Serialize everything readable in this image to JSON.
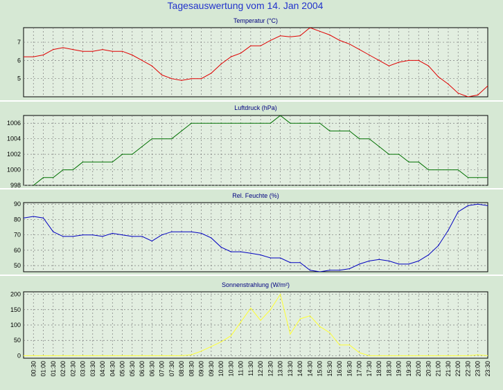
{
  "page_title": "Tagesauswertung vom 14. Jan 2004",
  "colors": {
    "background": "#d6e8d4",
    "plot_bg": "#e2eee0",
    "title": "#2233cc",
    "temperature": "#e00000",
    "pressure": "#007000",
    "humidity": "#0000c0",
    "solar": "#ffff33"
  },
  "x_labels": [
    "00:30",
    "01:00",
    "01:30",
    "02:00",
    "02:30",
    "03:00",
    "03:30",
    "04:00",
    "04:30",
    "05:00",
    "05:30",
    "06:00",
    "06:30",
    "07:00",
    "07:30",
    "08:00",
    "08:30",
    "09:00",
    "09:30",
    "10:00",
    "10:30",
    "11:00",
    "11:30",
    "12:00",
    "12:30",
    "13:00",
    "13:30",
    "14:00",
    "14:30",
    "15:00",
    "15:30",
    "16:00",
    "16:30",
    "17:00",
    "17:30",
    "18:00",
    "18:30",
    "19:00",
    "19:30",
    "20:00",
    "20:30",
    "21:00",
    "21:30",
    "22:00",
    "22:30",
    "23:00",
    "23:30"
  ],
  "chart_data": [
    {
      "type": "line",
      "title": "Temperatur (°C)",
      "ylim": [
        4,
        7.8
      ],
      "yticks": [
        5,
        6,
        7
      ],
      "grid": true,
      "series": [
        {
          "color": "#e00000",
          "x": [
            0,
            0.5,
            1,
            1.5,
            2,
            2.5,
            3,
            3.5,
            4,
            4.5,
            5,
            5.5,
            6,
            6.5,
            7,
            7.5,
            8,
            8.5,
            9,
            9.5,
            10,
            10.5,
            11,
            11.5,
            12,
            12.5,
            13,
            13.5,
            14,
            14.5,
            15,
            15.5,
            16,
            16.5,
            17,
            17.5,
            18,
            18.5,
            19,
            19.5,
            20,
            20.5,
            21,
            21.5,
            22,
            22.5,
            23,
            23.5
          ],
          "values": [
            6.2,
            6.2,
            6.3,
            6.6,
            6.7,
            6.6,
            6.5,
            6.5,
            6.6,
            6.5,
            6.5,
            6.3,
            6.0,
            5.7,
            5.2,
            5.0,
            4.9,
            5.0,
            5.0,
            5.3,
            5.8,
            6.2,
            6.4,
            6.8,
            6.8,
            7.1,
            7.35,
            7.3,
            7.35,
            7.8,
            7.6,
            7.4,
            7.1,
            6.9,
            6.6,
            6.3,
            6.0,
            5.7,
            5.9,
            6.0,
            6.0,
            5.7,
            5.1,
            4.7,
            4.2,
            4.0,
            4.1,
            4.6
          ]
        }
      ]
    },
    {
      "type": "line",
      "title": "Luftdruck (hPa)",
      "ylim": [
        998,
        1007
      ],
      "yticks": [
        998,
        1000,
        1002,
        1004,
        1006
      ],
      "grid": true,
      "series": [
        {
          "color": "#007000",
          "x": [
            0.5,
            1,
            1.5,
            2,
            2.5,
            3,
            3.5,
            4,
            4.5,
            5,
            5.5,
            6,
            6.5,
            7,
            7.5,
            8,
            8.5,
            9,
            9.5,
            10,
            10.5,
            11,
            11.5,
            12,
            12.5,
            13,
            13.5,
            14,
            14.5,
            15,
            15.5,
            16,
            16.5,
            17,
            17.5,
            18,
            18.5,
            19,
            19.5,
            20,
            20.5,
            21,
            21.5,
            22,
            22.5,
            23,
            23.5
          ],
          "values": [
            998,
            999,
            999,
            1000,
            1000,
            1001,
            1001,
            1001,
            1001,
            1002,
            1002,
            1003,
            1004,
            1004,
            1004,
            1005,
            1006,
            1006,
            1006,
            1006,
            1006,
            1006,
            1006,
            1006,
            1006,
            1007,
            1006,
            1006,
            1006,
            1006,
            1005,
            1005,
            1005,
            1004,
            1004,
            1003,
            1002,
            1002,
            1001,
            1001,
            1000,
            1000,
            1000,
            1000,
            999,
            999,
            999
          ]
        }
      ]
    },
    {
      "type": "line",
      "title": "Rel. Feuchte (%)",
      "ylim": [
        46,
        91
      ],
      "yticks": [
        50,
        60,
        70,
        80,
        90
      ],
      "grid": true,
      "series": [
        {
          "color": "#0000c0",
          "x": [
            0,
            0.5,
            1,
            1.5,
            2,
            2.5,
            3,
            3.5,
            4,
            4.5,
            5,
            5.5,
            6,
            6.5,
            7,
            7.5,
            8,
            8.5,
            9,
            9.5,
            10,
            10.5,
            11,
            11.5,
            12,
            12.5,
            13,
            13.5,
            14,
            14.5,
            15,
            15.5,
            16,
            16.5,
            17,
            17.5,
            18,
            18.5,
            19,
            19.5,
            20,
            20.5,
            21,
            21.5,
            22,
            22.5,
            23,
            23.5
          ],
          "values": [
            81,
            82,
            81,
            72,
            69,
            69,
            70,
            70,
            69,
            71,
            70,
            69,
            69,
            66,
            70,
            72,
            72,
            72,
            71,
            68,
            62,
            59,
            59,
            58,
            57,
            55,
            55,
            52,
            52,
            47,
            46,
            47,
            47,
            48,
            51,
            53,
            54,
            53,
            51,
            51,
            53,
            57,
            63,
            73,
            85,
            89,
            90,
            89
          ]
        }
      ]
    },
    {
      "type": "line",
      "title": "Sonnenstrahlung (W/m²)",
      "ylim": [
        -8,
        208
      ],
      "yticks": [
        0,
        50,
        100,
        150,
        200
      ],
      "grid": true,
      "series": [
        {
          "color": "#ffff33",
          "x": [
            0,
            0.5,
            1,
            1.5,
            2,
            2.5,
            3,
            3.5,
            4,
            4.5,
            5,
            5.5,
            6,
            6.5,
            7,
            7.5,
            8,
            8.5,
            9,
            9.5,
            10,
            10.5,
            11,
            11.5,
            12,
            12.5,
            13,
            13.5,
            14,
            14.5,
            15,
            15.5,
            16,
            16.5,
            17,
            17.5,
            18,
            18.5,
            19,
            19.5,
            20,
            20.5,
            21,
            21.5,
            22,
            22.5,
            23,
            23.5
          ],
          "values": [
            0,
            0,
            0,
            0,
            0,
            0,
            0,
            0,
            0,
            0,
            0,
            0,
            0,
            0,
            0,
            0,
            0,
            3,
            15,
            30,
            45,
            65,
            110,
            155,
            115,
            150,
            200,
            70,
            120,
            130,
            95,
            75,
            35,
            35,
            10,
            0,
            0,
            0,
            0,
            0,
            0,
            0,
            0,
            0,
            0,
            0,
            3,
            0
          ]
        }
      ]
    }
  ]
}
